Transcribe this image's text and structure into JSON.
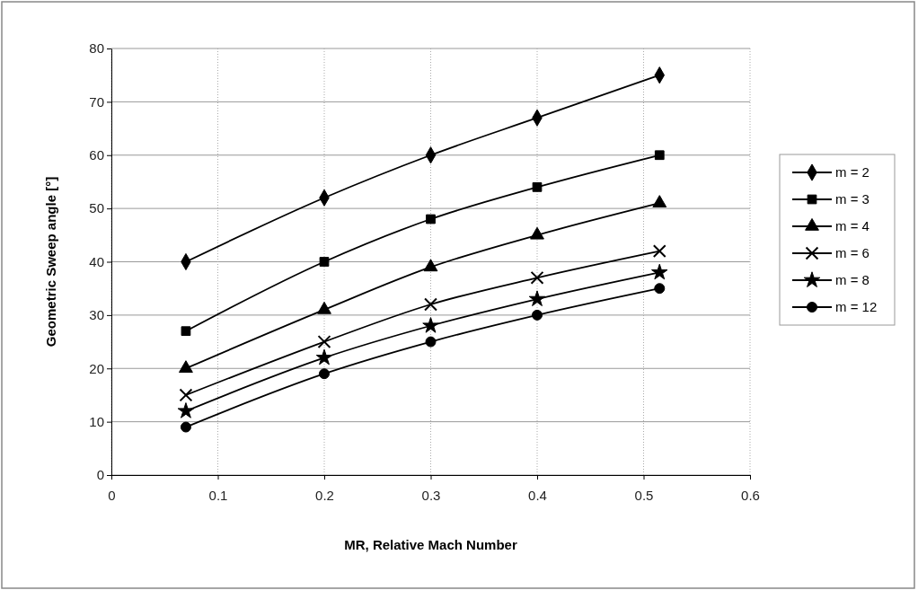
{
  "chart_data": {
    "type": "line",
    "xlabel": "MR, Relative Mach Number",
    "ylabel": "Geometric Sweep angle [°]",
    "xlim": [
      0,
      0.6
    ],
    "xticks": [
      0,
      0.1,
      0.2,
      0.3,
      0.4,
      0.5,
      0.6
    ],
    "ylim": [
      0,
      80
    ],
    "yticks": [
      0,
      10,
      20,
      30,
      40,
      50,
      60,
      70,
      80
    ],
    "grid": true,
    "legend": "right",
    "line_style": "solid",
    "x": [
      0.07,
      0.2,
      0.3,
      0.4,
      0.515
    ],
    "series": [
      {
        "name": "m = 2",
        "color": "#000000",
        "marker": "diamond",
        "values": [
          40,
          52,
          60,
          67,
          75
        ]
      },
      {
        "name": "m = 3",
        "color": "#000000",
        "marker": "square",
        "values": [
          27,
          40,
          48,
          54,
          60
        ]
      },
      {
        "name": "m = 4",
        "color": "#000000",
        "marker": "triangle",
        "values": [
          20,
          31,
          39,
          45,
          51
        ]
      },
      {
        "name": "m = 6",
        "color": "#000000",
        "marker": "cross",
        "values": [
          15,
          25,
          32,
          37,
          42
        ]
      },
      {
        "name": "m = 8",
        "color": "#000000",
        "marker": "star",
        "values": [
          12,
          22,
          28,
          33,
          38
        ]
      },
      {
        "name": "m = 12",
        "color": "#000000",
        "marker": "circle",
        "values": [
          9,
          19,
          25,
          30,
          35
        ]
      }
    ]
  }
}
